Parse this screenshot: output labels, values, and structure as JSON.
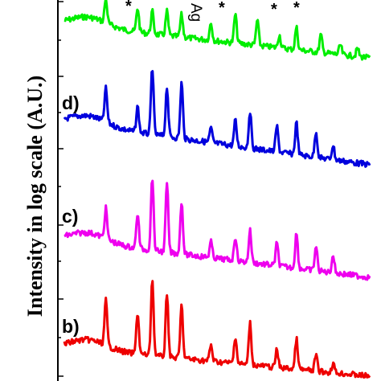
{
  "chart_data": {
    "type": "line",
    "title": "",
    "xlabel": "",
    "ylabel": "Intensity in log scale (A.U.)",
    "yscale": "log",
    "grid": false,
    "legend": "none",
    "series": [
      {
        "name": "",
        "color": "#00ee00",
        "peaks": [
          {
            "pos": 0.17,
            "h": 30
          },
          {
            "pos": 0.3,
            "h": 30
          },
          {
            "pos": 0.36,
            "h": 28
          },
          {
            "pos": 0.42,
            "h": 30
          },
          {
            "pos": 0.48,
            "h": 28
          },
          {
            "pos": 0.6,
            "h": 22
          },
          {
            "pos": 0.7,
            "h": 36
          },
          {
            "pos": 0.79,
            "h": 32
          },
          {
            "pos": 0.88,
            "h": 16
          },
          {
            "pos": 0.95,
            "h": 28
          },
          {
            "pos": 1.05,
            "h": 22
          },
          {
            "pos": 1.13,
            "h": 12
          },
          {
            "pos": 1.2,
            "h": 10
          }
        ]
      },
      {
        "name": "",
        "color": "#0000dd",
        "peaks": [
          {
            "pos": 0.17,
            "h": 42
          },
          {
            "pos": 0.3,
            "h": 32
          },
          {
            "pos": 0.36,
            "h": 84
          },
          {
            "pos": 0.42,
            "h": 62
          },
          {
            "pos": 0.48,
            "h": 70
          },
          {
            "pos": 0.6,
            "h": 18
          },
          {
            "pos": 0.7,
            "h": 32
          },
          {
            "pos": 0.76,
            "h": 46
          },
          {
            "pos": 0.87,
            "h": 32
          },
          {
            "pos": 0.95,
            "h": 40
          },
          {
            "pos": 1.03,
            "h": 32
          },
          {
            "pos": 1.1,
            "h": 18
          }
        ]
      },
      {
        "name": "",
        "color": "#ee00ee",
        "peaks": [
          {
            "pos": 0.17,
            "h": 38
          },
          {
            "pos": 0.3,
            "h": 44
          },
          {
            "pos": 0.36,
            "h": 92
          },
          {
            "pos": 0.42,
            "h": 86
          },
          {
            "pos": 0.48,
            "h": 66
          },
          {
            "pos": 0.6,
            "h": 20
          },
          {
            "pos": 0.7,
            "h": 30
          },
          {
            "pos": 0.76,
            "h": 40
          },
          {
            "pos": 0.87,
            "h": 28
          },
          {
            "pos": 0.95,
            "h": 44
          },
          {
            "pos": 1.03,
            "h": 30
          },
          {
            "pos": 1.1,
            "h": 22
          }
        ]
      },
      {
        "name": "",
        "color": "#ee0000",
        "peaks": [
          {
            "pos": 0.17,
            "h": 56
          },
          {
            "pos": 0.3,
            "h": 52
          },
          {
            "pos": 0.36,
            "h": 96
          },
          {
            "pos": 0.42,
            "h": 80
          },
          {
            "pos": 0.48,
            "h": 66
          },
          {
            "pos": 0.6,
            "h": 20
          },
          {
            "pos": 0.7,
            "h": 34
          },
          {
            "pos": 0.76,
            "h": 52
          },
          {
            "pos": 0.87,
            "h": 22
          },
          {
            "pos": 0.95,
            "h": 38
          },
          {
            "pos": 1.03,
            "h": 20
          },
          {
            "pos": 1.1,
            "h": 12
          }
        ]
      }
    ],
    "curve_labels": [
      "d)",
      "c)",
      "b)"
    ],
    "annotations": {
      "star": "*",
      "ag_fragment": "Ag"
    }
  }
}
